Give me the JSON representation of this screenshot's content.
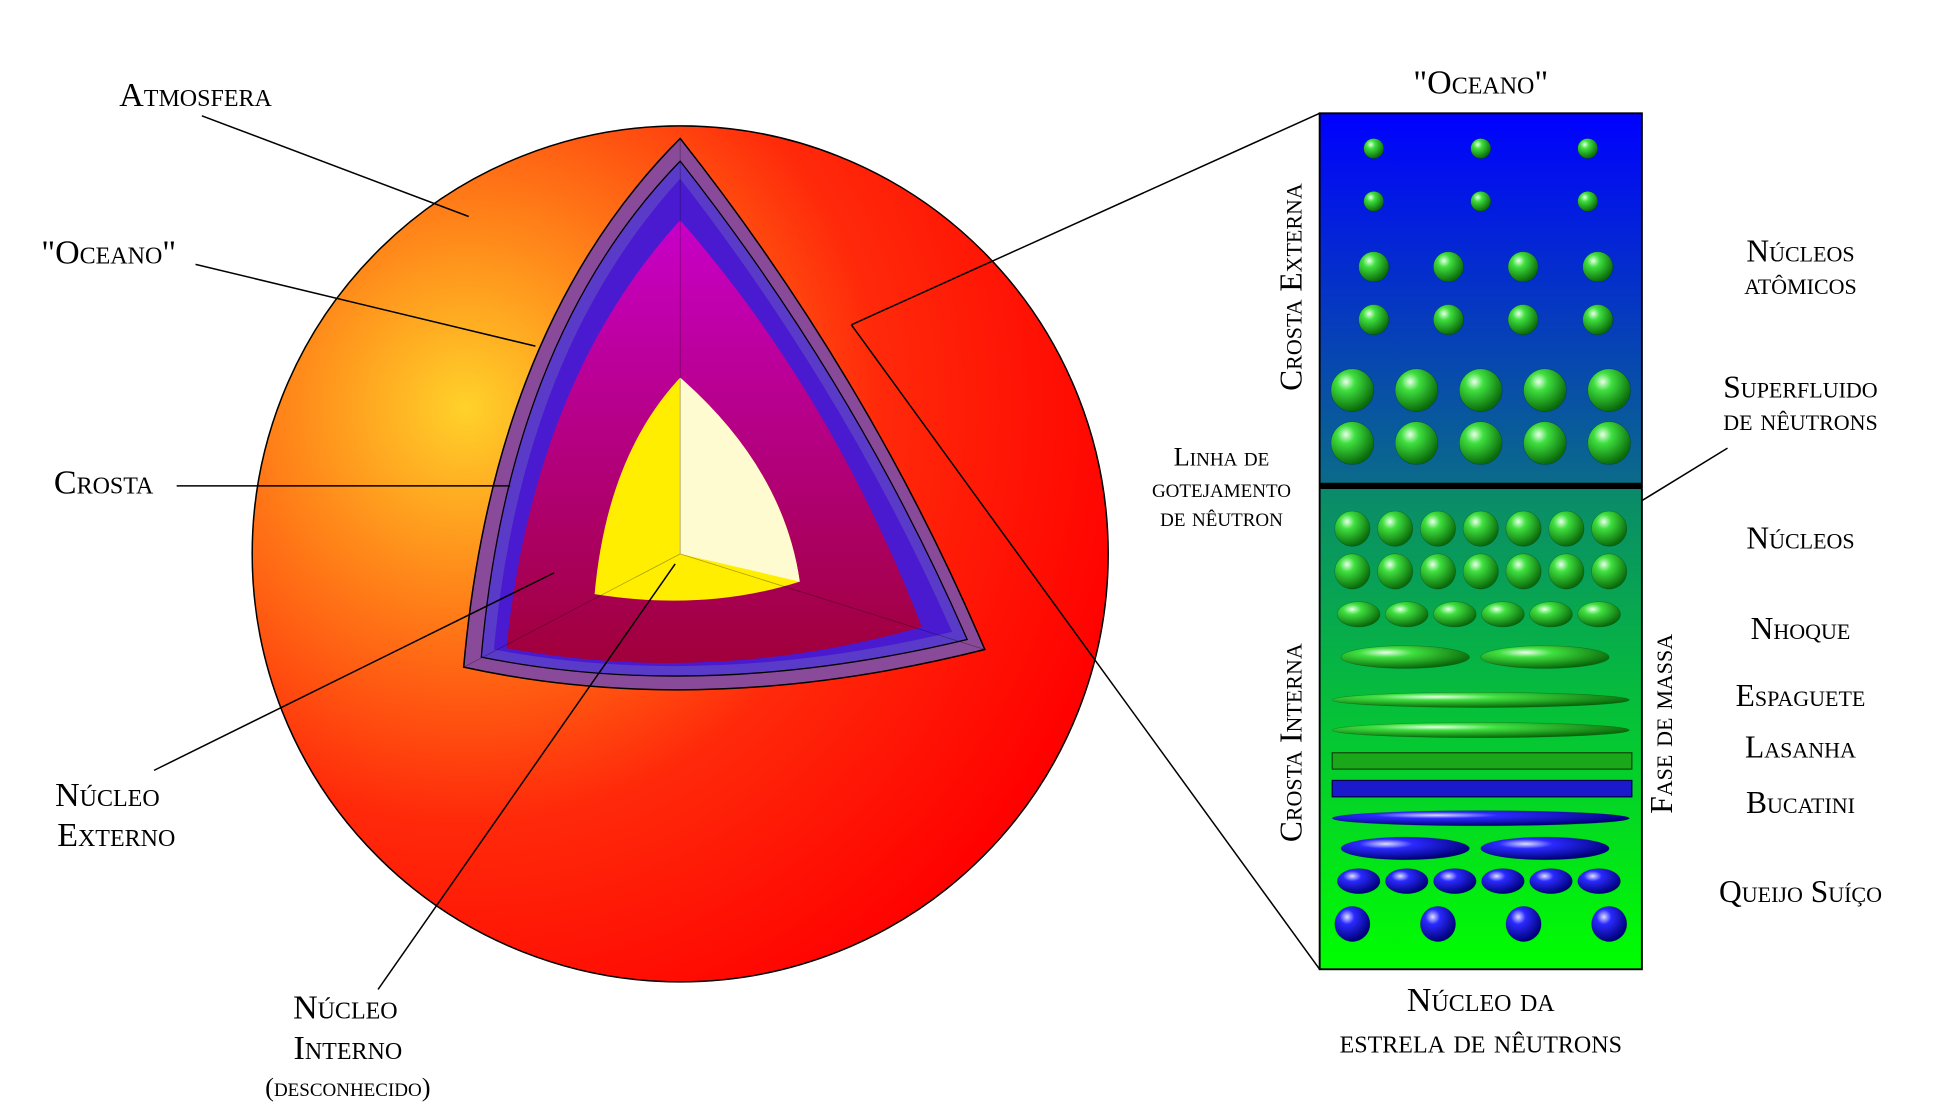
{
  "star": {
    "atmosphere": "Atmosfera",
    "ocean": "\"Oceano\"",
    "crust": "Crosta",
    "outer_core": [
      "Núcleo",
      "Externo"
    ],
    "inner_core": [
      "Núcleo",
      "Interno",
      "(desconhecido)"
    ]
  },
  "panel": {
    "top_title": "\"Oceano\"",
    "outer_crust": "Crosta Externa",
    "inner_crust": "Crosta Interna",
    "drip_line": [
      "Linha de",
      "gotejamento",
      "de nêutron"
    ],
    "bottom": [
      "Núcleo da",
      "estrela de nêutrons"
    ],
    "pasta_phase": "Fase de massa",
    "atomic_nuclei": [
      "Núcleos",
      "atômicos"
    ],
    "superfluid": [
      "Superfluido",
      "de nêutrons"
    ],
    "nuclei": "Núcleos",
    "gnocchi": "Nhoque",
    "spaghetti": "Espaguete",
    "lasagna": "Lasanha",
    "bucatini": "Bucatini",
    "swiss_cheese": "Queijo Suíço"
  }
}
